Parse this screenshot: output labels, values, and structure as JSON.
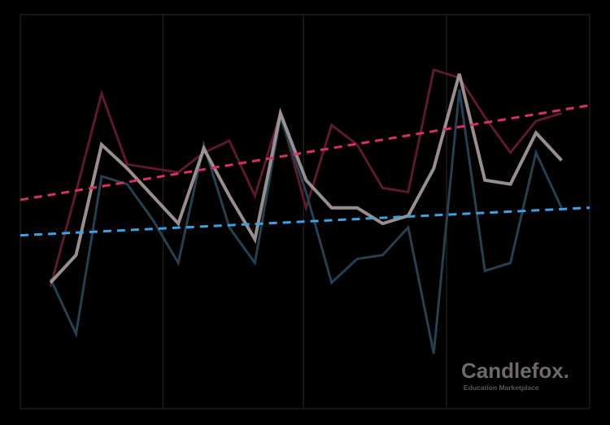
{
  "chart_data": {
    "type": "line",
    "brand": {
      "name": "Candlefox.",
      "tagline": "Education Marketplace"
    },
    "categories": [
      null,
      null,
      null,
      null,
      null,
      null,
      null,
      null,
      null,
      null,
      null,
      null,
      null,
      null,
      null,
      null,
      null,
      null,
      null,
      null,
      null
    ],
    "xlim": [
      -1.18,
      21.1
    ],
    "xticks": [
      4.4,
      9.9,
      15.5
    ],
    "ylim": [
      0,
      100
    ],
    "grid": true,
    "series": [
      {
        "color": "#5c1a2c",
        "values": [
          31,
          55,
          80,
          62,
          61,
          60,
          65,
          68,
          54,
          75,
          51,
          72,
          67,
          56,
          55,
          86,
          84,
          74,
          65,
          73,
          75
        ]
      },
      {
        "color": "#26404f",
        "values": [
          33,
          19,
          59,
          57,
          48,
          37,
          67,
          46,
          37,
          74,
          55,
          32,
          38,
          39,
          46,
          14,
          81,
          35,
          37,
          65,
          51
        ]
      },
      {
        "color": "#a89d9e",
        "values": [
          32,
          39,
          67,
          61,
          54,
          47,
          66,
          54,
          43,
          75,
          58,
          51,
          51,
          47,
          49,
          61,
          85,
          58,
          57,
          70,
          63
        ]
      }
    ],
    "trend_lines": [
      {
        "color": "#d63068",
        "values": [
          53,
          77
        ]
      },
      {
        "color": "#3aa3e6",
        "values": [
          44,
          51
        ]
      }
    ]
  }
}
